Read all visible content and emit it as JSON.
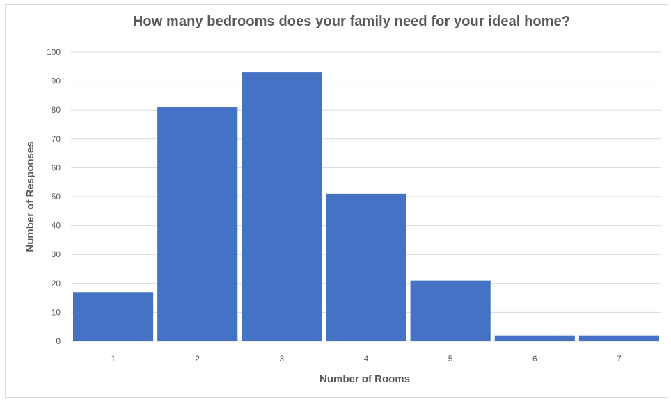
{
  "chart_data": {
    "type": "bar",
    "title": "How many bedrooms does your family need for your ideal home?",
    "xlabel": "Number of Rooms",
    "ylabel": "Number of Responses",
    "categories": [
      "1",
      "2",
      "3",
      "4",
      "5",
      "6",
      "7"
    ],
    "values": [
      17,
      81,
      93,
      51,
      21,
      2,
      2
    ],
    "ylim": [
      0,
      100
    ],
    "yticks": [
      0,
      10,
      20,
      30,
      40,
      50,
      60,
      70,
      80,
      90,
      100
    ],
    "grid": true,
    "legend": "none",
    "bar_color": "#4472c4",
    "grid_color": "#d9d9d9",
    "text_color": "#595959"
  }
}
